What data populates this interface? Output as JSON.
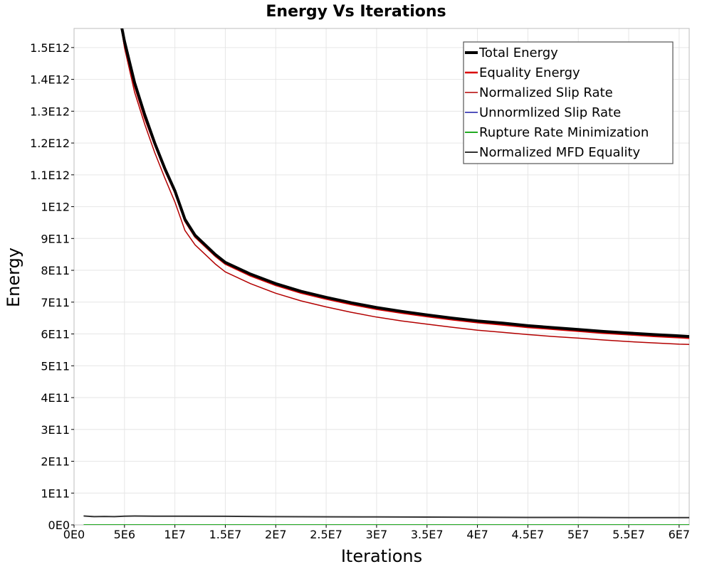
{
  "chart_data": {
    "type": "line",
    "title": "Energy Vs Iterations",
    "xlabel": "Iterations",
    "ylabel": "Energy",
    "xlim": [
      0,
      61000000
    ],
    "ylim": [
      0,
      1560000000000
    ],
    "grid": true,
    "legend_position": "top-right",
    "x_ticks": [
      {
        "value": 0,
        "label": "0E0"
      },
      {
        "value": 5000000,
        "label": "5E6"
      },
      {
        "value": 10000000,
        "label": "1E7"
      },
      {
        "value": 15000000,
        "label": "1.5E7"
      },
      {
        "value": 20000000,
        "label": "2E7"
      },
      {
        "value": 25000000,
        "label": "2.5E7"
      },
      {
        "value": 30000000,
        "label": "3E7"
      },
      {
        "value": 35000000,
        "label": "3.5E7"
      },
      {
        "value": 40000000,
        "label": "4E7"
      },
      {
        "value": 45000000,
        "label": "4.5E7"
      },
      {
        "value": 50000000,
        "label": "5E7"
      },
      {
        "value": 55000000,
        "label": "5.5E7"
      },
      {
        "value": 60000000,
        "label": "6E7"
      }
    ],
    "y_ticks": [
      {
        "value": 0,
        "label": "0E0"
      },
      {
        "value": 100000000000,
        "label": "1E11"
      },
      {
        "value": 200000000000,
        "label": "2E11"
      },
      {
        "value": 300000000000,
        "label": "3E11"
      },
      {
        "value": 400000000000,
        "label": "4E11"
      },
      {
        "value": 500000000000,
        "label": "5E11"
      },
      {
        "value": 600000000000,
        "label": "6E11"
      },
      {
        "value": 700000000000,
        "label": "7E11"
      },
      {
        "value": 800000000000,
        "label": "8E11"
      },
      {
        "value": 900000000000,
        "label": "9E11"
      },
      {
        "value": 1000000000000,
        "label": "1E12"
      },
      {
        "value": 1100000000000,
        "label": "1.1E12"
      },
      {
        "value": 1200000000000,
        "label": "1.2E12"
      },
      {
        "value": 1300000000000,
        "label": "1.3E12"
      },
      {
        "value": 1400000000000,
        "label": "1.4E12"
      },
      {
        "value": 1500000000000,
        "label": "1.5E12"
      }
    ],
    "series": [
      {
        "name": "Total Energy",
        "color": "#000000",
        "x": [
          4500000,
          5000000,
          6000000,
          7000000,
          8000000,
          9000000,
          10000000,
          11000000,
          12000000,
          14000000,
          15000000,
          17500000,
          20000000,
          22500000,
          25000000,
          27500000,
          30000000,
          32500000,
          35000000,
          37500000,
          40000000,
          42500000,
          45000000,
          47500000,
          50000000,
          52500000,
          55000000,
          57500000,
          60000000,
          61000000
        ],
        "y": [
          1600000000000,
          1520000000000,
          1390000000000,
          1290000000000,
          1200000000000,
          1120000000000,
          1050000000000,
          960000000000,
          910000000000,
          850000000000,
          825000000000,
          788000000000,
          758000000000,
          734000000000,
          715000000000,
          698000000000,
          683000000000,
          671000000000,
          660000000000,
          650000000000,
          641000000000,
          634000000000,
          626000000000,
          620000000000,
          614000000000,
          608000000000,
          603000000000,
          598000000000,
          594000000000,
          592000000000
        ]
      },
      {
        "name": "Equality Energy",
        "color": "#d90000",
        "x": [
          4500000,
          5000000,
          6000000,
          7000000,
          8000000,
          9000000,
          10000000,
          11000000,
          12000000,
          14000000,
          15000000,
          17500000,
          20000000,
          22500000,
          25000000,
          27500000,
          30000000,
          32500000,
          35000000,
          37500000,
          40000000,
          42500000,
          45000000,
          47500000,
          50000000,
          52500000,
          55000000,
          57500000,
          60000000,
          61000000
        ],
        "y": [
          1600000000000,
          1510000000000,
          1380000000000,
          1280000000000,
          1195000000000,
          1115000000000,
          1045000000000,
          955000000000,
          905000000000,
          845000000000,
          820000000000,
          783000000000,
          753000000000,
          729000000000,
          710000000000,
          693000000000,
          678000000000,
          666000000000,
          655000000000,
          645000000000,
          636000000000,
          629000000000,
          621000000000,
          615000000000,
          609000000000,
          603000000000,
          598000000000,
          593000000000,
          589000000000,
          587000000000
        ]
      },
      {
        "name": "Normalized Slip Rate",
        "color": "#b30000",
        "x": [
          4500000,
          5000000,
          6000000,
          7000000,
          8000000,
          9000000,
          10000000,
          11000000,
          12000000,
          14000000,
          15000000,
          17500000,
          20000000,
          22500000,
          25000000,
          27500000,
          30000000,
          32500000,
          35000000,
          37500000,
          40000000,
          42500000,
          45000000,
          47500000,
          50000000,
          52500000,
          55000000,
          57500000,
          60000000,
          61000000
        ],
        "y": [
          1600000000000,
          1500000000000,
          1360000000000,
          1260000000000,
          1170000000000,
          1090000000000,
          1015000000000,
          925000000000,
          880000000000,
          820000000000,
          795000000000,
          758000000000,
          728000000000,
          704000000000,
          685000000000,
          668000000000,
          653000000000,
          641000000000,
          631000000000,
          621000000000,
          612000000000,
          605000000000,
          598000000000,
          592000000000,
          587000000000,
          581000000000,
          576000000000,
          572000000000,
          568000000000,
          567000000000
        ]
      },
      {
        "name": "Unnormlized Slip Rate",
        "color": "#1a1aa6",
        "x": [
          1000000,
          61000000
        ],
        "y": [
          0,
          0
        ]
      },
      {
        "name": "Rupture Rate Minimization",
        "color": "#22aa22",
        "x": [
          1000000,
          61000000
        ],
        "y": [
          0,
          0
        ]
      },
      {
        "name": "Normalized MFD Equality",
        "color": "#333333",
        "x": [
          1000000,
          2000000,
          3000000,
          4000000,
          5000000,
          6000000,
          8000000,
          10000000,
          15000000,
          20000000,
          25000000,
          30000000,
          35000000,
          40000000,
          45000000,
          50000000,
          55000000,
          60000000,
          61000000
        ],
        "y": [
          28000000000,
          26000000000,
          26500000000,
          26000000000,
          27500000000,
          28000000000,
          27500000000,
          27500000000,
          27000000000,
          26000000000,
          25500000000,
          25000000000,
          24500000000,
          24000000000,
          23500000000,
          23500000000,
          23000000000,
          23000000000,
          23000000000
        ]
      }
    ]
  }
}
